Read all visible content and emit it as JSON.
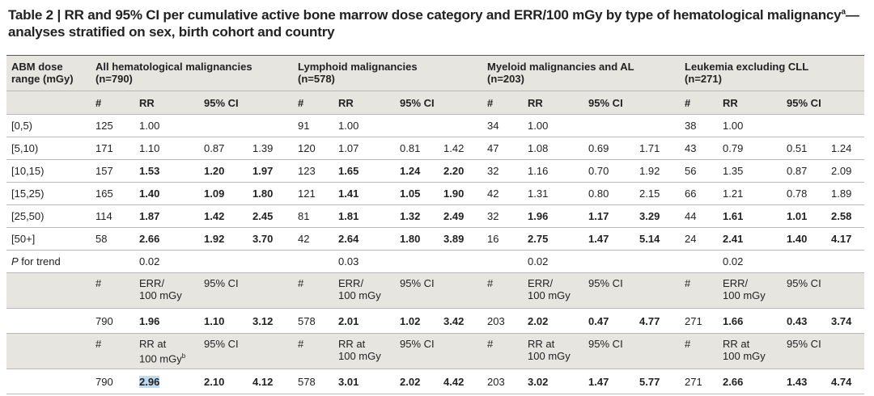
{
  "title": {
    "main": "Table 2 | RR and 95% CI per cumulative active bone marrow dose category and ERR/100 mGy by type of hematological malignancy",
    "superscript": "a",
    "rest": "—analyses stratified on sex, birth cohort and country"
  },
  "table": {
    "corner": "ABM dose range (mGy)",
    "groups": [
      {
        "name": "All hematological malignancies",
        "count": "(n=790)"
      },
      {
        "name": "Lymphoid malignancies",
        "count": "(n=578)"
      },
      {
        "name": "Myeloid malignancies and AL",
        "count": "(n=203)"
      },
      {
        "name": "Leukemia excluding CLL",
        "count": "(n=271)"
      }
    ],
    "subheader": [
      "#",
      "RR",
      "95% CI"
    ],
    "rows": [
      {
        "label": "[0,5)",
        "cells": [
          "125",
          "1.00",
          null,
          null,
          "91",
          "1.00",
          null,
          null,
          "34",
          "1.00",
          null,
          null,
          "38",
          "1.00",
          null,
          null
        ],
        "bold": []
      },
      {
        "label": "[5,10)",
        "cells": [
          "171",
          "1.10",
          "0.87",
          "1.39",
          "120",
          "1.07",
          "0.81",
          "1.42",
          "47",
          "1.08",
          "0.69",
          "1.71",
          "43",
          "0.79",
          "0.51",
          "1.24"
        ],
        "bold": []
      },
      {
        "label": "[10,15)",
        "cells": [
          "157",
          "1.53",
          "1.20",
          "1.97",
          "123",
          "1.65",
          "1.24",
          "2.20",
          "32",
          "1.16",
          "0.70",
          "1.92",
          "56",
          "1.35",
          "0.87",
          "2.09"
        ],
        "bold": [
          1,
          2,
          3,
          5,
          6,
          7
        ]
      },
      {
        "label": "[15,25)",
        "cells": [
          "165",
          "1.40",
          "1.09",
          "1.80",
          "121",
          "1.41",
          "1.05",
          "1.90",
          "42",
          "1.31",
          "0.80",
          "2.15",
          "66",
          "1.21",
          "0.78",
          "1.89"
        ],
        "bold": [
          1,
          2,
          3,
          5,
          6,
          7
        ]
      },
      {
        "label": "[25,50)",
        "cells": [
          "114",
          "1.87",
          "1.42",
          "2.45",
          "81",
          "1.81",
          "1.32",
          "2.49",
          "32",
          "1.96",
          "1.17",
          "3.29",
          "44",
          "1.61",
          "1.01",
          "2.58"
        ],
        "bold": [
          1,
          2,
          3,
          5,
          6,
          7,
          9,
          10,
          11,
          13,
          14,
          15
        ]
      },
      {
        "label": "[50+]",
        "cells": [
          "58",
          "2.66",
          "1.92",
          "3.70",
          "42",
          "2.64",
          "1.80",
          "3.89",
          "16",
          "2.75",
          "1.47",
          "5.14",
          "24",
          "2.41",
          "1.40",
          "4.17"
        ],
        "bold": [
          1,
          2,
          3,
          5,
          6,
          7,
          9,
          10,
          11,
          13,
          14,
          15
        ]
      }
    ],
    "trend": {
      "label_italic": "P",
      "label": "for trend",
      "values": [
        "0.02",
        "0.03",
        "0.02",
        "0.02"
      ]
    },
    "err_header": [
      "#",
      "ERR/\n100 mGy",
      "95% CI"
    ],
    "err_row": {
      "cells": [
        "790",
        "1.96",
        "1.10",
        "3.12",
        "578",
        "2.01",
        "1.02",
        "3.42",
        "203",
        "2.02",
        "0.47",
        "4.77",
        "271",
        "1.66",
        "0.43",
        "3.74"
      ],
      "bold": [
        1,
        2,
        3,
        5,
        6,
        7,
        9,
        10,
        11,
        13,
        14,
        15
      ]
    },
    "rr_header": {
      "labels": [
        "#",
        "RR at\n100 mGy",
        "95% CI"
      ],
      "superscript": "b"
    },
    "rr_row": {
      "cells": [
        "790",
        "2.96",
        "2.10",
        "4.12",
        "578",
        "3.01",
        "2.02",
        "4.42",
        "203",
        "3.02",
        "1.47",
        "5.77",
        "271",
        "2.66",
        "1.43",
        "4.74"
      ],
      "bold": [
        1,
        2,
        3,
        5,
        6,
        7,
        9,
        10,
        11,
        13,
        14,
        15
      ]
    }
  }
}
